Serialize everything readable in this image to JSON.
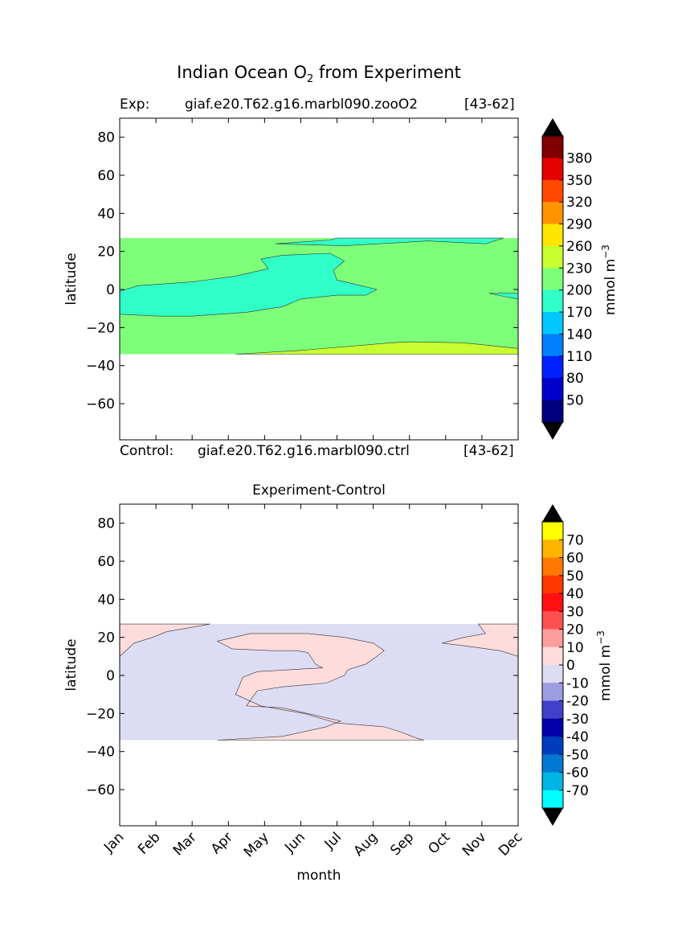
{
  "figure": {
    "title_prefix": "Indian Ocean O",
    "title_sub": "2",
    "title_suffix": " from Experiment"
  },
  "colors": {
    "field": [
      "#00007f",
      "#0000cc",
      "#0020ff",
      "#0080ff",
      "#00c8ff",
      "#30ffc8",
      "#7dff7a",
      "#c8ff30",
      "#ffe500",
      "#ff9400",
      "#ff4800",
      "#e60000",
      "#7f0000"
    ],
    "diff": [
      "#00ffff",
      "#00b4e6",
      "#0078d2",
      "#003cbe",
      "#0000aa",
      "#4040cc",
      "#9c9ce0",
      "#dcdcf4",
      "#ffdcdc",
      "#ff9c9c",
      "#ff5050",
      "#ff1010",
      "#ff3800",
      "#ff7800",
      "#ffb400",
      "#ffff00"
    ]
  },
  "chart_data": [
    {
      "type": "contour",
      "panel_id": "experiment",
      "header_left": "Exp:",
      "header_center": "giaf.e20.T62.g16.marbl090.zooO2",
      "header_right": "[43-62]",
      "footer_left": "Control:",
      "footer_center": "giaf.e20.T62.g16.marbl090.ctrl",
      "footer_right": "[43-62]",
      "ylabel": "latitude",
      "xlabel": "",
      "xlim": [
        0,
        11
      ],
      "ylim": [
        -79,
        90
      ],
      "yticks": [
        80,
        60,
        40,
        20,
        0,
        -20,
        -40,
        -60
      ],
      "ytick_labels": [
        "80",
        "60",
        "40",
        "20",
        "0",
        "−20",
        "−40",
        "−60"
      ],
      "xticks": [
        0,
        1,
        2,
        3,
        4,
        5,
        6,
        7,
        8,
        9,
        10,
        11
      ],
      "data_lat_range": [
        -34,
        27
      ],
      "regions": [
        {
          "level": "200-230",
          "polygon": [
            [
              0,
              27
            ],
            [
              11,
              27
            ],
            [
              11,
              -34
            ],
            [
              0,
              -34
            ]
          ]
        },
        {
          "level": "170-200",
          "polygon": [
            [
              0,
              -1
            ],
            [
              0.5,
              2
            ],
            [
              2,
              4
            ],
            [
              3.2,
              7
            ],
            [
              4.1,
              11
            ],
            [
              3.9,
              16
            ],
            [
              4.5,
              18
            ],
            [
              5.8,
              19
            ],
            [
              6.2,
              15
            ],
            [
              5.9,
              10
            ],
            [
              6,
              5
            ],
            [
              7.1,
              0
            ],
            [
              6.8,
              -3
            ],
            [
              6,
              -3
            ],
            [
              5,
              -5
            ],
            [
              4.5,
              -9
            ],
            [
              3.5,
              -12
            ],
            [
              2,
              -14
            ],
            [
              1.1,
              -14
            ],
            [
              0,
              -13
            ]
          ]
        },
        {
          "level": "170-200",
          "polygon": [
            [
              4.3,
              24
            ],
            [
              5.8,
              26
            ],
            [
              6,
              27
            ],
            [
              10.6,
              27
            ],
            [
              10.1,
              24
            ],
            [
              8.5,
              25.5
            ],
            [
              6.2,
              23
            ]
          ]
        },
        {
          "level": "170-200",
          "polygon": [
            [
              10.2,
              -2
            ],
            [
              11,
              -2
            ],
            [
              11,
              -5
            ],
            [
              10.6,
              -3.6
            ]
          ]
        },
        {
          "level": "230-260",
          "polygon": [
            [
              3.2,
              -34
            ],
            [
              5,
              -32
            ],
            [
              7.5,
              -28
            ],
            [
              8,
              -27.5
            ],
            [
              9.5,
              -28
            ],
            [
              11,
              -31
            ],
            [
              11,
              -34
            ]
          ]
        }
      ],
      "colorbar": {
        "labels": [
          "380",
          "350",
          "320",
          "290",
          "260",
          "230",
          "200",
          "170",
          "140",
          "110",
          "80",
          "50"
        ],
        "label": "mmol m",
        "label_exp": "−3",
        "extend": "both"
      }
    },
    {
      "type": "contour",
      "panel_id": "difference",
      "title": "Experiment-Control",
      "ylabel": "latitude",
      "xlabel": "month",
      "xlim": [
        0,
        11
      ],
      "ylim": [
        -79,
        90
      ],
      "yticks": [
        80,
        60,
        40,
        20,
        0,
        -20,
        -40,
        -60
      ],
      "ytick_labels": [
        "80",
        "60",
        "40",
        "20",
        "0",
        "−20",
        "−40",
        "−60"
      ],
      "xticks": [
        0,
        1,
        2,
        3,
        4,
        5,
        6,
        7,
        8,
        9,
        10,
        11
      ],
      "xtick_labels": [
        "Jan",
        "Feb",
        "Mar",
        "Apr",
        "May",
        "Jun",
        "Jul",
        "Aug",
        "Sep",
        "Oct",
        "Nov",
        "Dec"
      ],
      "data_lat_range": [
        -34,
        27
      ],
      "regions": [
        {
          "level": "-10-0",
          "polygon": [
            [
              0,
              27
            ],
            [
              11,
              27
            ],
            [
              11,
              -34
            ],
            [
              0,
              -34
            ]
          ]
        },
        {
          "level": "0-10",
          "polygon": [
            [
              0,
              27
            ],
            [
              2.5,
              27
            ],
            [
              1.3,
              23
            ],
            [
              0.9,
              20
            ],
            [
              0.4,
              17
            ],
            [
              0,
              10
            ]
          ]
        },
        {
          "level": "0-10",
          "polygon": [
            [
              9.9,
              27
            ],
            [
              11,
              27
            ],
            [
              11,
              10
            ],
            [
              10.5,
              13
            ],
            [
              9.5,
              15.6
            ],
            [
              8.9,
              17
            ],
            [
              9.5,
              20
            ],
            [
              10.1,
              22
            ]
          ]
        },
        {
          "level": "0-10",
          "polygon": [
            [
              2.7,
              -34
            ],
            [
              4.5,
              -32
            ],
            [
              5.7,
              -27
            ],
            [
              6.1,
              -24
            ],
            [
              4.5,
              -17
            ],
            [
              3.5,
              -16
            ],
            [
              3.8,
              -8
            ],
            [
              4.5,
              -6
            ],
            [
              5.7,
              -4
            ],
            [
              6.2,
              0
            ],
            [
              6.3,
              3
            ],
            [
              6.8,
              6
            ],
            [
              7.1,
              10
            ],
            [
              7.3,
              13
            ],
            [
              7,
              17
            ],
            [
              6.2,
              20
            ],
            [
              5.2,
              22
            ],
            [
              3.6,
              22
            ],
            [
              2.7,
              18
            ],
            [
              3,
              15
            ],
            [
              3.1,
              14
            ],
            [
              4.2,
              13
            ],
            [
              4.9,
              13
            ],
            [
              5.2,
              12
            ],
            [
              5.4,
              6
            ],
            [
              5.6,
              4
            ],
            [
              3.8,
              2
            ],
            [
              3.4,
              -1
            ],
            [
              3.2,
              -10
            ],
            [
              3.9,
              -16
            ],
            [
              5.1,
              -20
            ],
            [
              6,
              -25
            ],
            [
              7.3,
              -27
            ],
            [
              7.8,
              -30
            ],
            [
              8.2,
              -33
            ],
            [
              8.4,
              -34
            ]
          ]
        }
      ],
      "colorbar": {
        "labels": [
          "70",
          "60",
          "50",
          "40",
          "30",
          "20",
          "10",
          "0",
          "-10",
          "-20",
          "-30",
          "-40",
          "-50",
          "-60",
          "-70"
        ],
        "label": "mmol m",
        "label_exp": "−3",
        "extend": "both"
      }
    }
  ]
}
